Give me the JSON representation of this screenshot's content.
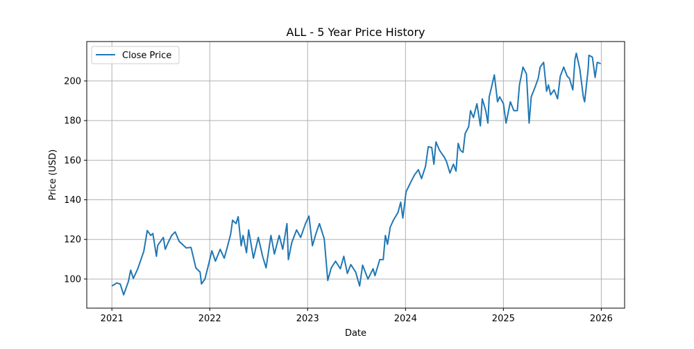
{
  "chart_data": {
    "type": "line",
    "title": "ALL - 5 Year Price History",
    "xlabel": "Date",
    "ylabel": "Price (USD)",
    "xlim": [
      "2020-09-29",
      "2026-03-29"
    ],
    "ylim": [
      85.3,
      219.9
    ],
    "x_ticks": [
      "2021",
      "2022",
      "2023",
      "2024",
      "2025",
      "2026"
    ],
    "y_ticks": [
      100,
      120,
      140,
      160,
      180,
      200
    ],
    "grid": true,
    "legend_position": "top-left",
    "series": [
      {
        "name": "Close Price",
        "color": "#1f77b4",
        "points": [
          [
            "2021-01-01",
            96.5
          ],
          [
            "2021-01-19",
            98
          ],
          [
            "2021-02-01",
            97.5
          ],
          [
            "2021-02-14",
            92
          ],
          [
            "2021-03-04",
            99
          ],
          [
            "2021-03-12",
            104.5
          ],
          [
            "2021-03-22",
            100.3
          ],
          [
            "2021-04-07",
            105
          ],
          [
            "2021-04-30",
            114
          ],
          [
            "2021-05-13",
            124.5
          ],
          [
            "2021-05-26",
            122
          ],
          [
            "2021-06-03",
            123
          ],
          [
            "2021-06-16",
            111.5
          ],
          [
            "2021-06-21",
            117
          ],
          [
            "2021-07-12",
            121
          ],
          [
            "2021-07-19",
            115
          ],
          [
            "2021-07-30",
            118.5
          ],
          [
            "2021-08-12",
            122
          ],
          [
            "2021-08-25",
            123.8
          ],
          [
            "2021-09-09",
            119
          ],
          [
            "2021-10-05",
            115.7
          ],
          [
            "2021-10-23",
            116
          ],
          [
            "2021-10-31",
            111.5
          ],
          [
            "2021-11-10",
            105.6
          ],
          [
            "2021-11-26",
            103.5
          ],
          [
            "2021-12-01",
            97.5
          ],
          [
            "2021-12-14",
            100
          ],
          [
            "2021-12-27",
            107
          ],
          [
            "2022-01-09",
            114.3
          ],
          [
            "2022-01-22",
            109
          ],
          [
            "2022-02-09",
            115
          ],
          [
            "2022-02-24",
            110.5
          ],
          [
            "2022-03-09",
            116.8
          ],
          [
            "2022-03-20",
            122.7
          ],
          [
            "2022-03-27",
            129.7
          ],
          [
            "2022-04-09",
            128
          ],
          [
            "2022-04-17",
            131.5
          ],
          [
            "2022-04-28",
            116.8
          ],
          [
            "2022-05-05",
            122
          ],
          [
            "2022-05-18",
            113.3
          ],
          [
            "2022-05-26",
            124.8
          ],
          [
            "2022-06-13",
            110.5
          ],
          [
            "2022-07-01",
            121
          ],
          [
            "2022-07-17",
            111.5
          ],
          [
            "2022-07-30",
            105.6
          ],
          [
            "2022-08-17",
            122
          ],
          [
            "2022-08-30",
            112.6
          ],
          [
            "2022-09-17",
            122
          ],
          [
            "2022-09-30",
            115
          ],
          [
            "2022-10-16",
            128
          ],
          [
            "2022-10-21",
            109.8
          ],
          [
            "2022-11-03",
            118.5
          ],
          [
            "2022-11-21",
            124.8
          ],
          [
            "2022-12-06",
            121
          ],
          [
            "2022-12-24",
            128
          ],
          [
            "2023-01-06",
            131.8
          ],
          [
            "2023-01-19",
            116.8
          ],
          [
            "2023-02-01",
            123
          ],
          [
            "2023-02-14",
            128
          ],
          [
            "2023-03-04",
            120.3
          ],
          [
            "2023-03-17",
            99.3
          ],
          [
            "2023-03-30",
            105.6
          ],
          [
            "2023-04-15",
            109
          ],
          [
            "2023-05-03",
            105.2
          ],
          [
            "2023-05-16",
            111.5
          ],
          [
            "2023-05-29",
            102.8
          ],
          [
            "2023-06-11",
            107.3
          ],
          [
            "2023-06-29",
            103.5
          ],
          [
            "2023-07-14",
            96.5
          ],
          [
            "2023-07-25",
            107
          ],
          [
            "2023-08-14",
            100
          ],
          [
            "2023-09-02",
            105.2
          ],
          [
            "2023-09-09",
            101.7
          ],
          [
            "2023-09-27",
            109.8
          ],
          [
            "2023-10-10",
            109.8
          ],
          [
            "2023-10-18",
            122
          ],
          [
            "2023-10-26",
            117.5
          ],
          [
            "2023-11-05",
            126.2
          ],
          [
            "2023-11-18",
            130
          ],
          [
            "2023-12-04",
            133.6
          ],
          [
            "2023-12-14",
            138.8
          ],
          [
            "2023-12-22",
            130.8
          ],
          [
            "2024-01-03",
            144
          ],
          [
            "2024-01-21",
            149
          ],
          [
            "2024-02-03",
            152.4
          ],
          [
            "2024-02-18",
            155.2
          ],
          [
            "2024-03-01",
            150.7
          ],
          [
            "2024-03-16",
            157
          ],
          [
            "2024-03-26",
            166.8
          ],
          [
            "2024-04-08",
            166.4
          ],
          [
            "2024-04-16",
            158
          ],
          [
            "2024-04-24",
            169.2
          ],
          [
            "2024-05-07",
            165
          ],
          [
            "2024-05-25",
            161.5
          ],
          [
            "2024-06-02",
            159.4
          ],
          [
            "2024-06-15",
            153.5
          ],
          [
            "2024-06-28",
            158
          ],
          [
            "2024-07-08",
            154.5
          ],
          [
            "2024-07-16",
            168.5
          ],
          [
            "2024-07-24",
            165
          ],
          [
            "2024-08-03",
            164
          ],
          [
            "2024-08-11",
            173.4
          ],
          [
            "2024-08-24",
            176.9
          ],
          [
            "2024-08-31",
            185
          ],
          [
            "2024-09-11",
            181.5
          ],
          [
            "2024-09-24",
            188.5
          ],
          [
            "2024-10-07",
            177.3
          ],
          [
            "2024-10-14",
            191
          ],
          [
            "2024-10-27",
            185
          ],
          [
            "2024-11-04",
            178.7
          ],
          [
            "2024-11-09",
            192
          ],
          [
            "2024-11-17",
            196.5
          ],
          [
            "2024-11-28",
            203.1
          ],
          [
            "2024-12-10",
            189.5
          ],
          [
            "2024-12-18",
            192
          ],
          [
            "2025-01-01",
            188.5
          ],
          [
            "2025-01-11",
            178.7
          ],
          [
            "2025-01-27",
            189.5
          ],
          [
            "2025-02-09",
            185
          ],
          [
            "2025-02-22",
            185
          ],
          [
            "2025-03-02",
            198
          ],
          [
            "2025-03-15",
            207
          ],
          [
            "2025-03-28",
            203.5
          ],
          [
            "2025-04-07",
            178.7
          ],
          [
            "2025-04-15",
            192
          ],
          [
            "2025-04-28",
            196.5
          ],
          [
            "2025-05-11",
            201.4
          ],
          [
            "2025-05-18",
            207
          ],
          [
            "2025-05-31",
            209.4
          ],
          [
            "2025-06-11",
            194.8
          ],
          [
            "2025-06-18",
            198
          ],
          [
            "2025-06-26",
            193
          ],
          [
            "2025-07-09",
            195.5
          ],
          [
            "2025-07-22",
            191
          ],
          [
            "2025-08-01",
            202.4
          ],
          [
            "2025-08-14",
            207
          ],
          [
            "2025-08-27",
            202.4
          ],
          [
            "2025-09-04",
            201.4
          ],
          [
            "2025-09-17",
            195.5
          ],
          [
            "2025-09-25",
            211
          ],
          [
            "2025-09-30",
            214
          ],
          [
            "2025-10-13",
            206
          ],
          [
            "2025-10-26",
            192
          ],
          [
            "2025-10-31",
            189.5
          ],
          [
            "2025-11-13",
            206
          ],
          [
            "2025-11-16",
            213
          ],
          [
            "2025-11-29",
            212
          ],
          [
            "2025-12-09",
            201.8
          ],
          [
            "2025-12-17",
            209.4
          ],
          [
            "2025-12-30",
            208.7
          ]
        ]
      }
    ]
  }
}
